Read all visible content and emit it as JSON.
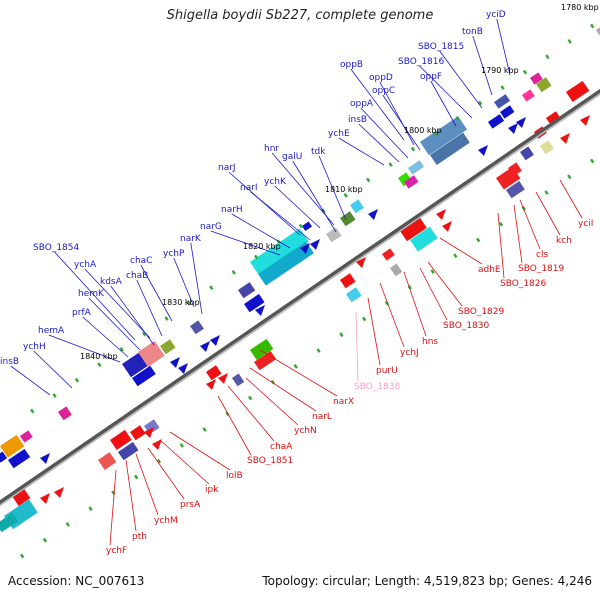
{
  "title": "Shigella boydii Sb227, complete genome",
  "footer": {
    "accession": "Accession: NC_007613",
    "topology": "Topology: circular; Length: 4,519,823 bp; Genes: 4,246"
  },
  "colors": {
    "upper_label": "#1a1acc",
    "lower_label": "#dd1111",
    "pink_label": "#f4a0c8",
    "backbone": "#666666",
    "tick": "#33aa33"
  },
  "kbp_labels": [
    "1780 kbp",
    "1790 kbp",
    "1800 kbp",
    "1810 kbp",
    "1820 kbp",
    "1830 kbp",
    "1840 kbp"
  ],
  "upper_genes": [
    "yciD",
    "tonB",
    "SBO_1815",
    "SBO_1816",
    "oppF",
    "oppB",
    "oppD",
    "oppC",
    "oppA",
    "insB",
    "ychE",
    "hnr",
    "galU",
    "tdk",
    "narJ",
    "ychK",
    "narI",
    "narH",
    "narG",
    "SBO_1854",
    "ychP",
    "chaC",
    "narK",
    "ychA",
    "kdsA",
    "chaB",
    "hemK",
    "prfA",
    "hemA",
    "ychH",
    "insB"
  ],
  "lower_genes": [
    {
      "name": "yciI",
      "pink": false
    },
    {
      "name": "kch",
      "pink": false
    },
    {
      "name": "cls",
      "pink": false
    },
    {
      "name": "SBO_1819",
      "pink": false
    },
    {
      "name": "SBO_1826",
      "pink": false
    },
    {
      "name": "adhE",
      "pink": false
    },
    {
      "name": "SBO_1829",
      "pink": false
    },
    {
      "name": "SBO_1830",
      "pink": false
    },
    {
      "name": "hns",
      "pink": false
    },
    {
      "name": "ychJ",
      "pink": false
    },
    {
      "name": "purU",
      "pink": false
    },
    {
      "name": "SBO_1838",
      "pink": true
    },
    {
      "name": "narX",
      "pink": false
    },
    {
      "name": "narL",
      "pink": false
    },
    {
      "name": "ychN",
      "pink": false
    },
    {
      "name": "chaA",
      "pink": false
    },
    {
      "name": "SBO_1851",
      "pink": false
    },
    {
      "name": "lolB",
      "pink": false
    },
    {
      "name": "ipk",
      "pink": false
    },
    {
      "name": "prsA",
      "pink": false
    },
    {
      "name": "ychM",
      "pink": false
    },
    {
      "name": "pth",
      "pink": false
    },
    {
      "name": "ychF",
      "pink": false
    }
  ]
}
